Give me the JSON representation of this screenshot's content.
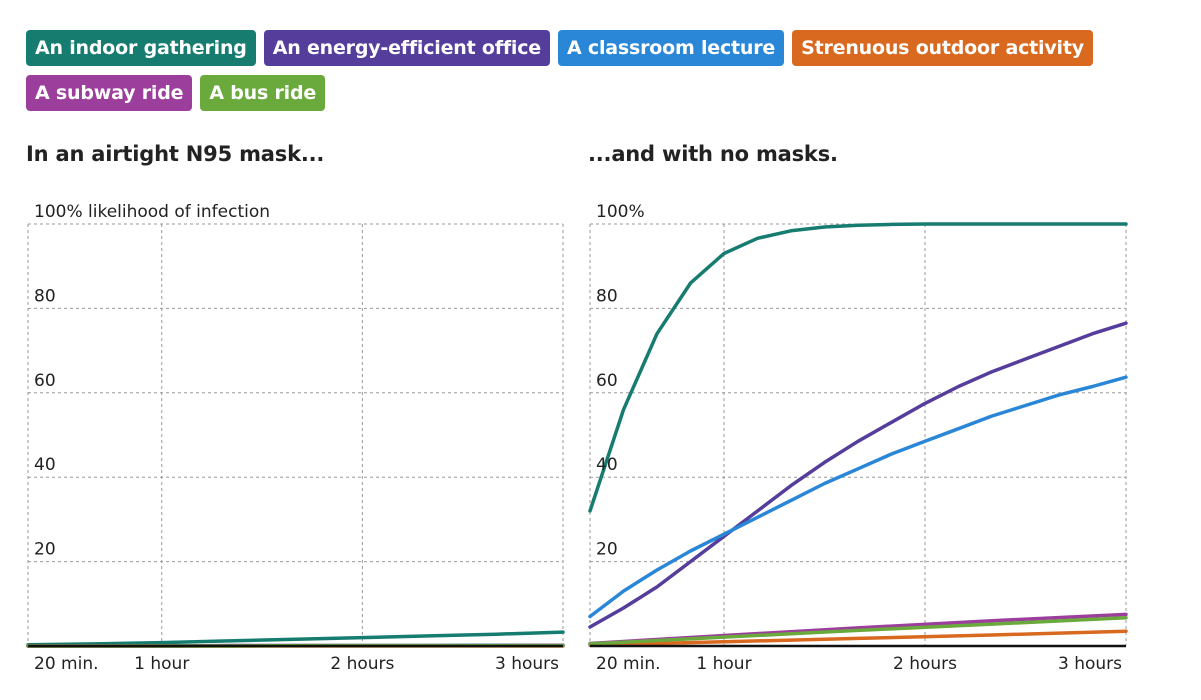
{
  "legend": {
    "rows": [
      [
        {
          "label": "An indoor gathering",
          "color": "#177c70"
        },
        {
          "label": "An energy-efficient office",
          "color": "#553d9c"
        },
        {
          "label": "A classroom lecture",
          "color": "#2a87d8"
        },
        {
          "label": "Strenuous outdoor activity",
          "color": "#d8691f"
        }
      ],
      [
        {
          "label": "A subway ride",
          "color": "#9c3e9c"
        },
        {
          "label": "A bus ride",
          "color": "#6aa93c"
        }
      ]
    ]
  },
  "panels": {
    "left": {
      "title": "In an airtight N95 mask..."
    },
    "right": {
      "title": "...and with no masks."
    }
  },
  "chart_data": [
    {
      "type": "line",
      "title": "In an airtight N95 mask...",
      "ylabel": "100% likelihood of infection",
      "ylim": [
        0,
        100
      ],
      "xlim": [
        20,
        180
      ],
      "x_unit": "minutes",
      "x_ticks": [
        {
          "value": 20,
          "label": "20 min."
        },
        {
          "value": 60,
          "label": "1 hour"
        },
        {
          "value": 120,
          "label": "2 hours"
        },
        {
          "value": 180,
          "label": "3 hours"
        }
      ],
      "y_ticks": [
        {
          "value": 100,
          "label": "100% likelihood of infection"
        },
        {
          "value": 80,
          "label": "80"
        },
        {
          "value": 60,
          "label": "60"
        },
        {
          "value": 40,
          "label": "40"
        },
        {
          "value": 20,
          "label": "20"
        }
      ],
      "grid": true,
      "x": [
        20,
        40,
        60,
        80,
        100,
        120,
        140,
        160,
        180
      ],
      "series": [
        {
          "name": "An indoor gathering",
          "color": "#177c70",
          "values": [
            0.3,
            0.5,
            0.8,
            1.2,
            1.6,
            2.0,
            2.4,
            2.8,
            3.3
          ]
        },
        {
          "name": "An energy-efficient office",
          "color": "#553d9c",
          "values": [
            0,
            0,
            0,
            0.1,
            0.1,
            0.1,
            0.1,
            0.2,
            0.2
          ]
        },
        {
          "name": "A classroom lecture",
          "color": "#2a87d8",
          "values": [
            0,
            0,
            0,
            0.1,
            0.1,
            0.1,
            0.1,
            0.2,
            0.2
          ]
        },
        {
          "name": "Strenuous outdoor activity",
          "color": "#d8691f",
          "values": [
            0,
            0,
            0,
            0,
            0,
            0,
            0,
            0,
            0
          ]
        },
        {
          "name": "A subway ride",
          "color": "#9c3e9c",
          "values": [
            0,
            0,
            0,
            0.1,
            0.1,
            0.1,
            0.1,
            0.1,
            0.2
          ]
        },
        {
          "name": "A bus ride",
          "color": "#6aa93c",
          "values": [
            0,
            0,
            0,
            0,
            0.1,
            0.1,
            0.1,
            0.1,
            0.1
          ]
        }
      ]
    },
    {
      "type": "line",
      "title": "...and with no masks.",
      "ylabel": "100%",
      "ylim": [
        0,
        100
      ],
      "xlim": [
        20,
        180
      ],
      "x_unit": "minutes",
      "x_ticks": [
        {
          "value": 20,
          "label": "20 min."
        },
        {
          "value": 60,
          "label": "1 hour"
        },
        {
          "value": 120,
          "label": "2 hours"
        },
        {
          "value": 180,
          "label": "3 hours"
        }
      ],
      "y_ticks": [
        {
          "value": 100,
          "label": "100%"
        },
        {
          "value": 80,
          "label": "80"
        },
        {
          "value": 60,
          "label": "60"
        },
        {
          "value": 40,
          "label": "40"
        },
        {
          "value": 20,
          "label": "20"
        }
      ],
      "grid": true,
      "series": [
        {
          "name": "An indoor gathering",
          "color": "#177c70",
          "x": [
            20,
            30,
            40,
            50,
            60,
            70,
            80,
            90,
            100,
            110,
            120,
            140,
            160,
            180
          ],
          "values": [
            32,
            56,
            74,
            86,
            93,
            96.6,
            98.4,
            99.3,
            99.7,
            99.9,
            100,
            100,
            100,
            100
          ]
        },
        {
          "name": "An energy-efficient office",
          "color": "#553d9c",
          "x": [
            20,
            30,
            40,
            50,
            60,
            70,
            80,
            90,
            100,
            110,
            120,
            130,
            140,
            150,
            160,
            170,
            180
          ],
          "values": [
            4.5,
            9,
            14,
            20,
            26,
            32,
            38,
            43.5,
            48.5,
            53,
            57.5,
            61.5,
            65,
            68,
            71,
            74,
            76.5
          ]
        },
        {
          "name": "A classroom lecture",
          "color": "#2a87d8",
          "x": [
            20,
            30,
            40,
            50,
            60,
            70,
            80,
            90,
            100,
            110,
            120,
            130,
            140,
            150,
            160,
            170,
            180
          ],
          "values": [
            7,
            13,
            18,
            22.5,
            26.5,
            30.5,
            34.5,
            38.5,
            42,
            45.5,
            48.5,
            51.5,
            54.5,
            57,
            59.5,
            61.5,
            63.7
          ]
        },
        {
          "name": "Strenuous outdoor activity",
          "color": "#d8691f",
          "x": [
            20,
            60,
            100,
            140,
            180
          ],
          "values": [
            0.2,
            1.0,
            1.8,
            2.6,
            3.5
          ]
        },
        {
          "name": "A subway ride",
          "color": "#9c3e9c",
          "x": [
            20,
            60,
            100,
            140,
            180
          ],
          "values": [
            0.6,
            2.5,
            4.3,
            6.0,
            7.5
          ]
        },
        {
          "name": "A bus ride",
          "color": "#6aa93c",
          "x": [
            20,
            60,
            100,
            140,
            180
          ],
          "values": [
            0.5,
            2.1,
            3.7,
            5.2,
            6.7
          ]
        }
      ]
    }
  ]
}
